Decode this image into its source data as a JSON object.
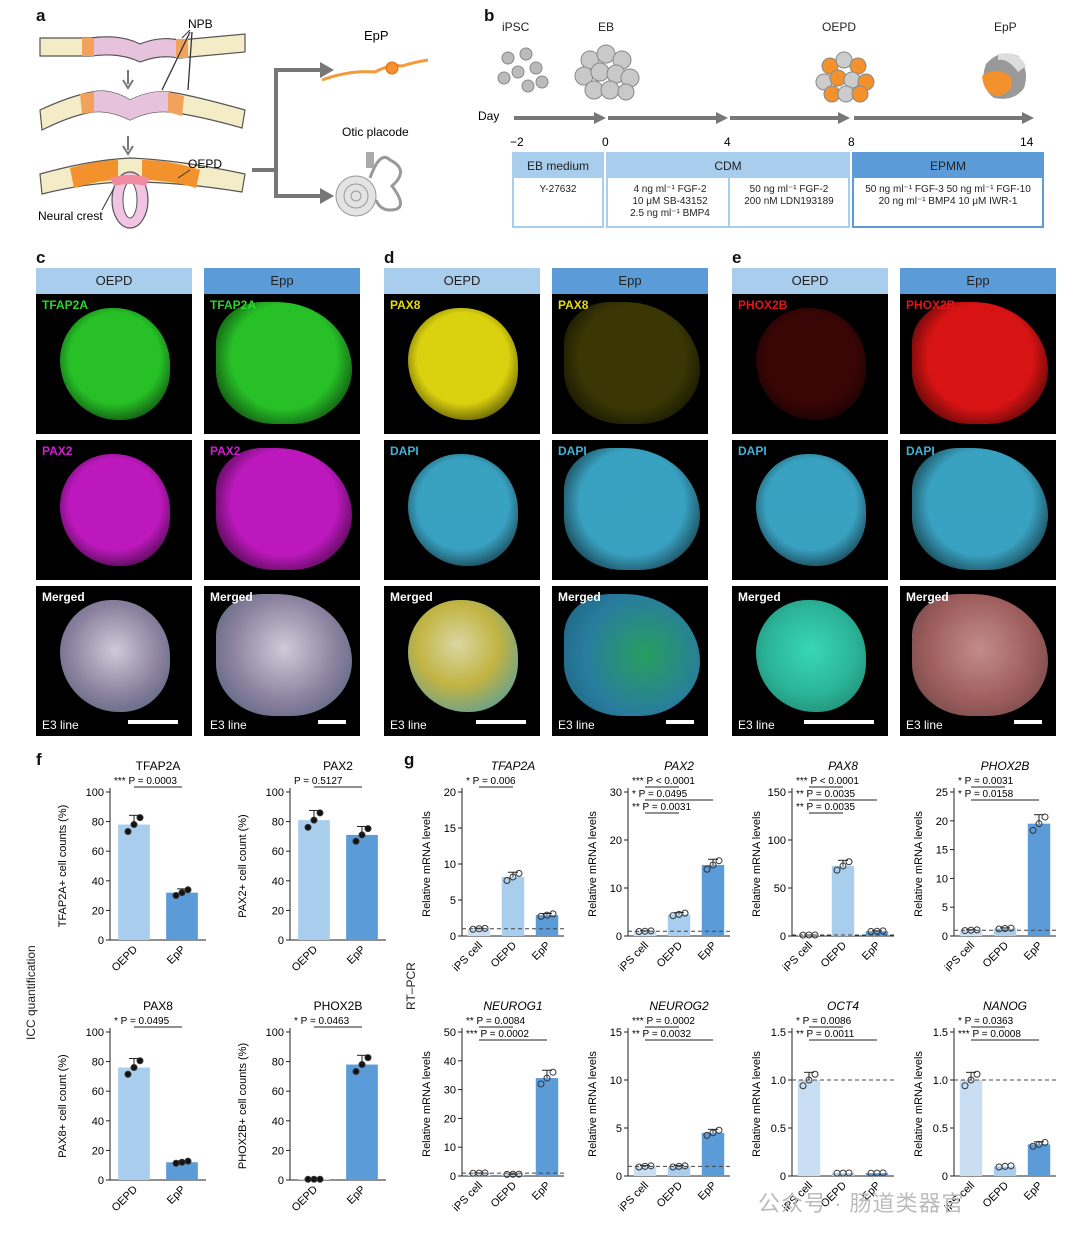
{
  "panels": {
    "a": "a",
    "b": "b",
    "c": "c",
    "d": "d",
    "e": "e",
    "f": "f",
    "g": "g"
  },
  "panel_a": {
    "npb": "NPB",
    "oepd": "OEPD",
    "neural_crest": "Neural crest",
    "epp": "EpP",
    "otic": "Otic placode"
  },
  "panel_b": {
    "stages": [
      "iPSC",
      "EB",
      "OEPD",
      "EpP"
    ],
    "day_label": "Day",
    "ticks": [
      "−2",
      "0",
      "4",
      "8",
      "14"
    ],
    "media": [
      {
        "name": "EB medium",
        "contents": [
          [
            "Y-27632"
          ]
        ]
      },
      {
        "name": "CDM",
        "contents": [
          [
            "4 ng ml⁻¹ FGF-2",
            "10 μM SB-43152",
            "2.5 ng ml⁻¹ BMP4"
          ],
          [
            "50 ng ml⁻¹ FGF-2",
            "200 nM LDN193189"
          ]
        ]
      },
      {
        "name": "EPMM",
        "contents": [
          [
            "50 ng ml⁻¹ FGF-3 50 ng ml⁻¹ FGF-10",
            "20 ng ml⁻¹ BMP4 10 μM IWR-1"
          ]
        ]
      }
    ]
  },
  "micro": {
    "oepd": "OEPD",
    "epp": "Epp",
    "e3": "E3 line",
    "c": {
      "rows": [
        "TFAP2A",
        "PAX2",
        "Merged"
      ]
    },
    "d": {
      "rows": [
        "PAX8",
        "DAPI",
        "Merged"
      ]
    },
    "e": {
      "rows": [
        "PHOX2B",
        "DAPI",
        "Merged"
      ]
    }
  },
  "colors": {
    "light_bar": "#a9cdec",
    "dark_bar": "#5b9bd8",
    "green": "#2bd62b",
    "magenta": "#d21bd2",
    "yellow": "#e6dc10",
    "cyan": "#3fb3d6",
    "red": "#e31414"
  },
  "f_side": "ICC quantification",
  "g_side": "RT–PCR",
  "chart_data": [
    {
      "type": "bar",
      "panel": "f",
      "title": "TFAP2A",
      "ylabel": "TFAP2A+ cell counts (%)",
      "categories": [
        "OEPD",
        "EpP"
      ],
      "values": [
        78,
        32
      ],
      "ylim": [
        0,
        100
      ],
      "yticks": [
        "0",
        "20",
        "40",
        "60",
        "80",
        "100"
      ],
      "annotations": [
        "*** P = 0.0003"
      ]
    },
    {
      "type": "bar",
      "panel": "f",
      "title": "PAX2",
      "ylabel": "PAX2+ cell count (%)",
      "categories": [
        "OEPD",
        "EpP"
      ],
      "values": [
        81,
        71
      ],
      "ylim": [
        0,
        100
      ],
      "yticks": [
        "0",
        "20",
        "40",
        "60",
        "80",
        "100"
      ],
      "annotations": [
        "P = 0.5127"
      ]
    },
    {
      "type": "bar",
      "panel": "f",
      "title": "PAX8",
      "ylabel": "PAX8+ cell count (%)",
      "categories": [
        "OEPD",
        "EpP"
      ],
      "values": [
        76,
        12
      ],
      "ylim": [
        0,
        100
      ],
      "yticks": [
        "0",
        "20",
        "40",
        "60",
        "80",
        "100"
      ],
      "annotations": [
        "* P = 0.0495"
      ]
    },
    {
      "type": "bar",
      "panel": "f",
      "title": "PHOX2B",
      "ylabel": "PHOX2B+ cell counts (%)",
      "categories": [
        "OEPD",
        "EpP"
      ],
      "values": [
        0.5,
        78
      ],
      "ylim": [
        0,
        100
      ],
      "yticks": [
        "0",
        "20",
        "40",
        "60",
        "80",
        "100"
      ],
      "annotations": [
        "* P = 0.0463"
      ]
    },
    {
      "type": "bar",
      "panel": "g",
      "title": "TFAP2A",
      "ylabel": "Relative mRNA levels",
      "categories": [
        "iPS cell",
        "OEPD",
        "EpP"
      ],
      "values": [
        1,
        8.2,
        2.9
      ],
      "ylim": [
        0,
        20
      ],
      "yticks": [
        "0",
        "5",
        "10",
        "15",
        "20"
      ],
      "annotations": [
        "* P = 0.006"
      ]
    },
    {
      "type": "bar",
      "panel": "g",
      "title": "PAX2",
      "ylabel": "Relative mRNA levels",
      "categories": [
        "iPS cell",
        "OEPD",
        "EpP"
      ],
      "values": [
        1,
        4.5,
        14.8
      ],
      "ylim": [
        0,
        30
      ],
      "yticks": [
        "0",
        "10",
        "20",
        "30"
      ],
      "annotations": [
        "*** P < 0.0001",
        "* P = 0.0495",
        "** P = 0.0031"
      ]
    },
    {
      "type": "bar",
      "panel": "g",
      "title": "PAX8",
      "ylabel": "Relative mRNA levels",
      "categories": [
        "iPS cell",
        "OEPD",
        "EpP"
      ],
      "values": [
        1,
        73,
        5
      ],
      "ylim": [
        0,
        150
      ],
      "yticks": [
        "0",
        "50",
        "100",
        "150"
      ],
      "annotations": [
        "*** P < 0.0001",
        "** P = 0.0035",
        "** P = 0.0035"
      ]
    },
    {
      "type": "bar",
      "panel": "g",
      "title": "PHOX2B",
      "ylabel": "Relative mRNA levels",
      "categories": [
        "iPS cell",
        "OEPD",
        "EpP"
      ],
      "values": [
        1,
        1.3,
        19.5
      ],
      "ylim": [
        0,
        25
      ],
      "yticks": [
        "0",
        "5",
        "10",
        "15",
        "20",
        "25"
      ],
      "annotations": [
        "* P = 0.0031",
        "* P = 0.0158"
      ]
    },
    {
      "type": "bar",
      "panel": "g",
      "title": "NEUROG1",
      "ylabel": "Relative mRNA levels",
      "categories": [
        "iPS cell",
        "OEPD",
        "EpP"
      ],
      "values": [
        1,
        0.6,
        34
      ],
      "ylim": [
        0,
        50
      ],
      "yticks": [
        "0",
        "10",
        "20",
        "30",
        "40",
        "50"
      ],
      "annotations": [
        "** P = 0.0084",
        "*** P = 0.0002"
      ]
    },
    {
      "type": "bar",
      "panel": "g",
      "title": "NEUROG2",
      "ylabel": "Relative mRNA levels",
      "categories": [
        "iPS cell",
        "OEPD",
        "EpP"
      ],
      "values": [
        1,
        1,
        4.5
      ],
      "ylim": [
        0,
        15
      ],
      "yticks": [
        "0",
        "5",
        "10",
        "15"
      ],
      "annotations": [
        "*** P = 0.0002",
        "** P = 0.0032"
      ]
    },
    {
      "type": "bar",
      "panel": "g",
      "title": "OCT4",
      "ylabel": "Relative mRNA levels",
      "categories": [
        "iPS cell",
        "OEPD",
        "EpP"
      ],
      "values": [
        1,
        0.03,
        0.03
      ],
      "ylim": [
        0,
        1.5
      ],
      "yticks": [
        "0",
        "0.5",
        "1.0",
        "1.5"
      ],
      "annotations": [
        "* P = 0.0086",
        "** P = 0.0011"
      ]
    },
    {
      "type": "bar",
      "panel": "g",
      "title": "NANOG",
      "ylabel": "Relative mRNA levels",
      "categories": [
        "iPS cell",
        "OEPD",
        "EpP"
      ],
      "values": [
        1,
        0.1,
        0.33
      ],
      "ylim": [
        0,
        1.5
      ],
      "yticks": [
        "0",
        "0.5",
        "1.0",
        "1.5"
      ],
      "annotations": [
        "* P = 0.0363",
        "*** P = 0.0008"
      ]
    }
  ],
  "watermark": "公众号 · 肠道类器官"
}
